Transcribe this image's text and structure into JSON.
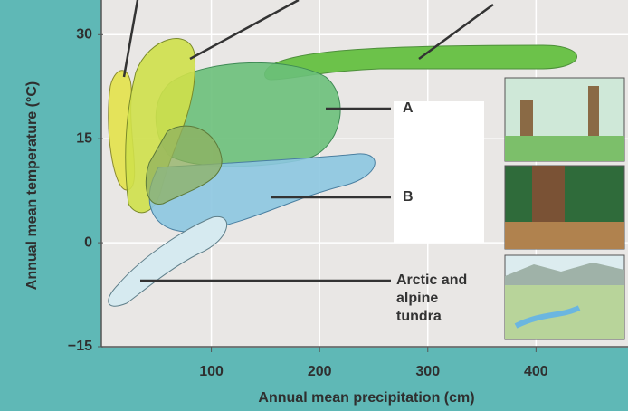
{
  "chart_data": {
    "type": "climograph",
    "x_label": "Annual mean precipitation (cm)",
    "y_label": "Annual mean temperature (°C)",
    "xlim": [
      0,
      485
    ],
    "ylim": [
      -15,
      35
    ],
    "xticks": [
      100,
      200,
      300,
      400
    ],
    "yticks": [
      30,
      15,
      0,
      {
        "value": -15,
        "label": "−15"
      }
    ],
    "annotations": [
      "A",
      "B",
      "Arctic and alpine tundra"
    ]
  }
}
